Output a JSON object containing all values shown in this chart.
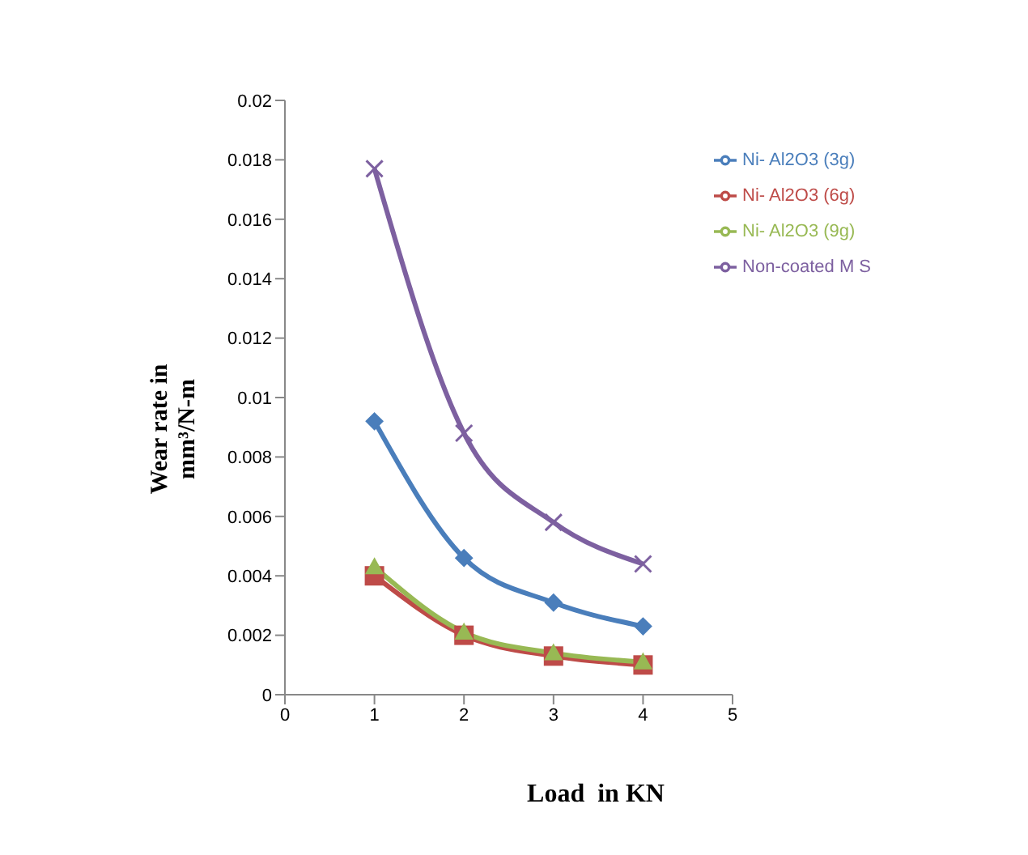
{
  "chart_data": {
    "type": "line",
    "xlabel": "Load  in KN",
    "ylabel": "Wear rate in mm³/N-m",
    "x": [
      1,
      2,
      3,
      4
    ],
    "xlim": [
      0,
      5
    ],
    "xticks": [
      0,
      1,
      2,
      3,
      4,
      5
    ],
    "ylim": [
      0,
      0.02
    ],
    "yticks": [
      0,
      0.002,
      0.004,
      0.006,
      0.008,
      0.01,
      0.012,
      0.014,
      0.016,
      0.018,
      0.02
    ],
    "grid": false,
    "legend": "top right",
    "series": [
      {
        "name": "Ni- Al2O3 (3g)",
        "color": "#4a7ebb",
        "marker": "diamond",
        "values": [
          0.0092,
          0.0046,
          0.0031,
          0.0023
        ]
      },
      {
        "name": "Ni- Al2O3 (6g)",
        "color": "#be4b48",
        "marker": "square",
        "values": [
          0.004,
          0.002,
          0.0013,
          0.001
        ]
      },
      {
        "name": "Ni- Al2O3 (9g)",
        "color": "#98b954",
        "marker": "triangle",
        "values": [
          0.0043,
          0.0021,
          0.0014,
          0.0011
        ]
      },
      {
        "name": "Non-coated M S",
        "color": "#7d60a0",
        "marker": "cross",
        "values": [
          0.0177,
          0.0088,
          0.0058,
          0.0044
        ]
      }
    ]
  }
}
